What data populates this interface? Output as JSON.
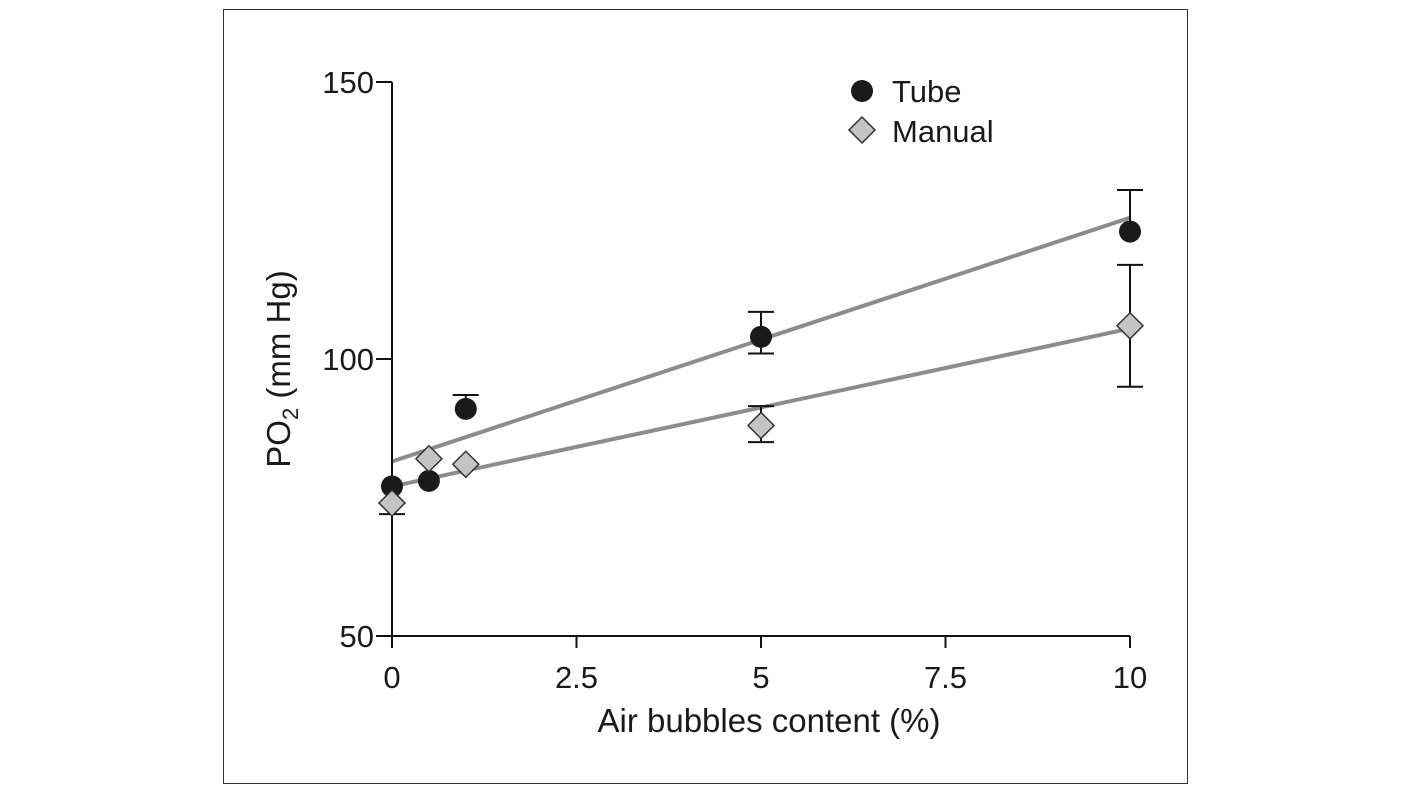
{
  "chart_data": {
    "type": "scatter",
    "xlabel": "Air bubbles content (%)",
    "ylabel_main": "PO",
    "ylabel_sub": "2",
    "ylabel_tail": " (mm Hg)",
    "xlim": [
      0,
      10
    ],
    "ylim": [
      50,
      150
    ],
    "x_ticks": [
      0,
      2.5,
      5,
      7.5,
      10
    ],
    "x_tick_labels": [
      "0",
      "2.5",
      "5",
      "7.5",
      "10"
    ],
    "y_ticks": [
      50,
      100,
      150
    ],
    "y_tick_labels": [
      "50",
      "100",
      "150"
    ],
    "grid": false,
    "legend_position": "top-right",
    "series": [
      {
        "name": "Tube",
        "marker": "circle",
        "color": "#1a1a1a",
        "x": [
          0,
          0.5,
          1,
          5,
          10
        ],
        "y": [
          77,
          78,
          91,
          104,
          123
        ],
        "err_up": [
          0,
          0,
          2.5,
          4.5,
          7.5
        ],
        "err_down": [
          0,
          0,
          0,
          3,
          0
        ],
        "fit": {
          "x": [
            0,
            10
          ],
          "y": [
            81.5,
            125.5
          ]
        }
      },
      {
        "name": "Manual",
        "marker": "diamond",
        "color": "#c4c4c4",
        "x": [
          0,
          0.5,
          1,
          5,
          10
        ],
        "y": [
          74,
          82,
          81,
          88,
          106
        ],
        "err_up": [
          0,
          0,
          0,
          3.5,
          11
        ],
        "err_down": [
          2,
          0,
          0,
          3,
          11
        ],
        "fit": {
          "x": [
            0,
            10
          ],
          "y": [
            77,
            105.5
          ]
        }
      }
    ]
  }
}
